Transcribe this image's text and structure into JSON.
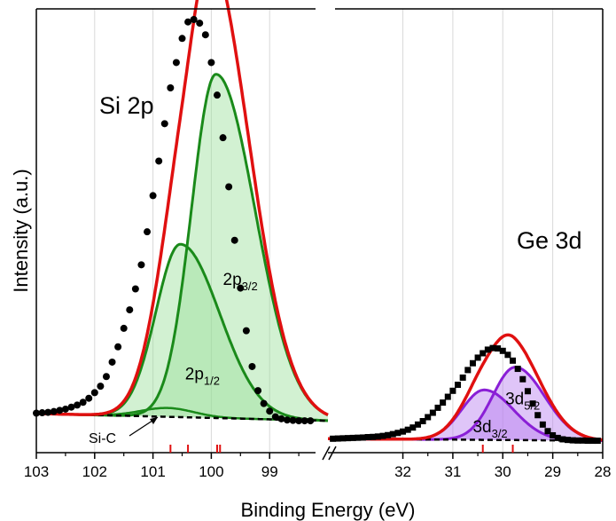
{
  "chart_data": [
    {
      "panel": "Si 2p",
      "type": "line",
      "xlim": [
        103,
        98.0
      ],
      "ylim": [
        0,
        1.0
      ],
      "grid": true,
      "xticks": [
        "103",
        "102",
        "101",
        "100",
        "99"
      ],
      "xtick_values": [
        103,
        102,
        101,
        100,
        99
      ],
      "region_label": "Si 2p",
      "component_labels": [
        {
          "id": "p32",
          "base": "2p",
          "sub": "3/2",
          "x": 99.8,
          "y": 0.34
        },
        {
          "id": "p12",
          "base": "2p",
          "sub": "1/2",
          "x": 100.45,
          "y": 0.105
        }
      ],
      "sic_label": "Si-C",
      "background": {
        "left": 0.02,
        "right": 0.002
      },
      "components": [
        {
          "name": "2p3/2",
          "center": 99.92,
          "amp": 0.855,
          "width": 0.42,
          "asym": 1.6
        },
        {
          "name": "2p1/2",
          "center": 100.53,
          "amp": 0.43,
          "width": 0.42,
          "asym": 1.6
        },
        {
          "name": "Si-C",
          "center": 100.75,
          "amp": 0.022,
          "width": 0.45,
          "asym": 1.0
        }
      ],
      "data_points": {
        "x": [
          103.0,
          102.9,
          102.8,
          102.7,
          102.6,
          102.5,
          102.4,
          102.3,
          102.2,
          102.1,
          102.0,
          101.9,
          101.8,
          101.7,
          101.6,
          101.5,
          101.4,
          101.3,
          101.2,
          101.1,
          101.0,
          100.9,
          100.8,
          100.7,
          100.6,
          100.5,
          100.4,
          100.3,
          100.2,
          100.1,
          100.0,
          99.9,
          99.8,
          99.7,
          99.6,
          99.5,
          99.4,
          99.3,
          99.2,
          99.1,
          99.0,
          98.9,
          98.8,
          98.7,
          98.6,
          98.5,
          98.4,
          98.3
        ],
        "y": [
          0.021,
          0.022,
          0.023,
          0.025,
          0.028,
          0.031,
          0.036,
          0.041,
          0.048,
          0.058,
          0.072,
          0.088,
          0.112,
          0.148,
          0.186,
          0.232,
          0.278,
          0.33,
          0.39,
          0.472,
          0.562,
          0.648,
          0.741,
          0.83,
          0.893,
          0.953,
          0.994,
          1.0,
          0.991,
          0.962,
          0.893,
          0.812,
          0.706,
          0.584,
          0.451,
          0.332,
          0.226,
          0.137,
          0.077,
          0.045,
          0.026,
          0.012,
          0.007,
          0.004,
          0.003,
          0.002,
          0.002,
          0.002
        ]
      }
    },
    {
      "panel": "Ge 3d",
      "type": "line",
      "xlim": [
        33.5,
        28.0
      ],
      "ylim": [
        0,
        1.0
      ],
      "grid": true,
      "xticks": [
        "32",
        "31",
        "30",
        "29",
        "28"
      ],
      "xtick_values": [
        32,
        31,
        30,
        29,
        28
      ],
      "region_label": "Ge 3d",
      "component_labels": [
        {
          "id": "d52",
          "base": "3d",
          "sub": "5/2",
          "x": 29.95,
          "y": 0.185
        },
        {
          "id": "d32",
          "base": "3d",
          "sub": "3/2",
          "x": 30.6,
          "y": 0.045
        }
      ],
      "background": {
        "left": 0.012,
        "right": 0.002
      },
      "components": [
        {
          "name": "3d5/2",
          "center": 29.75,
          "amp": 0.365,
          "width": 0.45,
          "asym": 1.3
        },
        {
          "name": "3d3/2",
          "center": 30.37,
          "amp": 0.25,
          "width": 0.45,
          "asym": 1.3
        }
      ],
      "data_points": {
        "x": [
          33.4,
          33.3,
          33.2,
          33.1,
          33.0,
          32.9,
          32.8,
          32.7,
          32.6,
          32.5,
          32.4,
          32.3,
          32.2,
          32.1,
          32.0,
          31.9,
          31.8,
          31.7,
          31.6,
          31.5,
          31.4,
          31.3,
          31.2,
          31.1,
          31.0,
          30.9,
          30.8,
          30.7,
          30.6,
          30.5,
          30.4,
          30.3,
          30.2,
          30.1,
          30.0,
          29.9,
          29.8,
          29.7,
          29.6,
          29.5,
          29.4,
          29.3,
          29.2,
          29.1,
          29.0,
          28.9,
          28.8,
          28.7,
          28.6,
          28.5,
          28.4,
          28.3,
          28.2,
          28.1
        ],
        "y": [
          0.012,
          0.013,
          0.014,
          0.015,
          0.016,
          0.017,
          0.018,
          0.02,
          0.021,
          0.023,
          0.026,
          0.03,
          0.035,
          0.041,
          0.048,
          0.057,
          0.068,
          0.083,
          0.1,
          0.12,
          0.142,
          0.167,
          0.193,
          0.222,
          0.252,
          0.282,
          0.318,
          0.356,
          0.39,
          0.418,
          0.44,
          0.458,
          0.466,
          0.464,
          0.452,
          0.432,
          0.403,
          0.362,
          0.31,
          0.25,
          0.188,
          0.13,
          0.083,
          0.05,
          0.029,
          0.016,
          0.009,
          0.006,
          0.004,
          0.003,
          0.003,
          0.002,
          0.002,
          0.002
        ]
      }
    }
  ],
  "axes": {
    "xlabel": "Binding Energy (eV)",
    "ylabel": "Intensity (a.u.)"
  },
  "colors": {
    "envelope": "#e01010",
    "si_component": "#1a8a1a",
    "si_fill": "#9be09b",
    "ge_component": "#8a1fd6",
    "ge_fill": "#b97ef0",
    "background_line": "#000000",
    "grid": "#d8d8d8",
    "marker": "#000000",
    "reference_tick": "#e01010"
  }
}
